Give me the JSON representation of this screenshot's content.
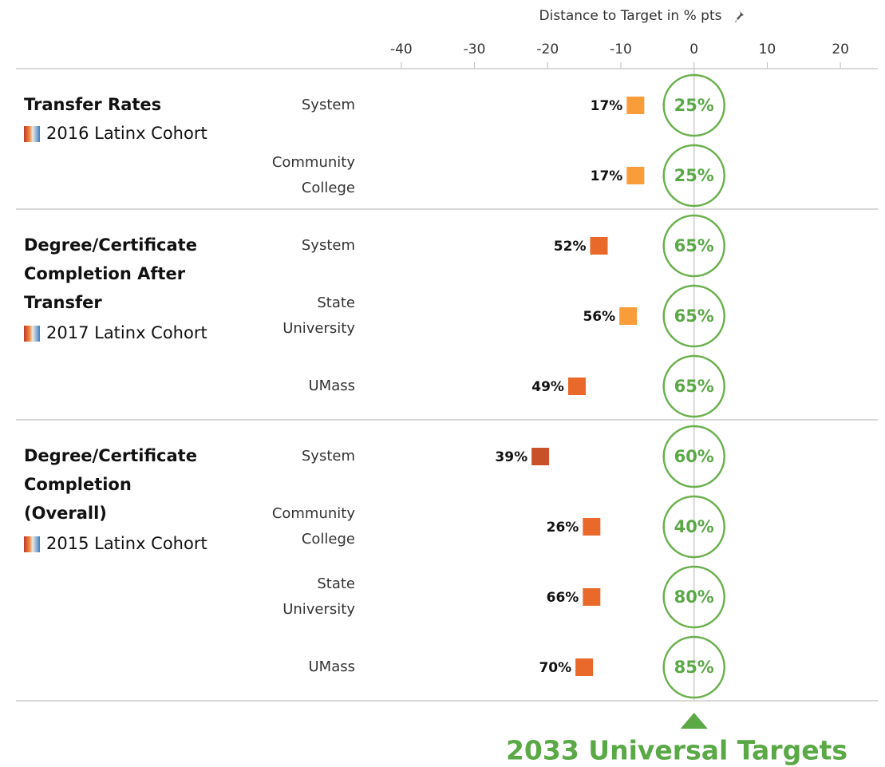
{
  "chart_data": {
    "type": "dot",
    "x_label": "Distance to Target in % pts",
    "xlim": [
      -45,
      25
    ],
    "xticks": [
      -40,
      -30,
      -20,
      -10,
      0,
      10,
      20
    ],
    "footer": "2033 Universal Targets",
    "groups": [
      {
        "title_lines": [
          "Transfer Rates"
        ],
        "cohort": "2016 Latinx Cohort",
        "rows": [
          {
            "label": [
              "System"
            ],
            "value": 17,
            "value_label": "17%",
            "target": 25,
            "target_label": "25%",
            "color": "#f99d3a"
          },
          {
            "label": [
              "Community",
              "College"
            ],
            "value": 17,
            "value_label": "17%",
            "target": 25,
            "target_label": "25%",
            "color": "#f99d3a"
          }
        ]
      },
      {
        "title_lines": [
          "Degree/Certificate",
          "Completion After",
          "Transfer"
        ],
        "cohort": "2017 Latinx Cohort",
        "rows": [
          {
            "label": [
              "System"
            ],
            "value": 52,
            "value_label": "52%",
            "target": 65,
            "target_label": "65%",
            "color": "#e8692a"
          },
          {
            "label": [
              "State",
              "University"
            ],
            "value": 56,
            "value_label": "56%",
            "target": 65,
            "target_label": "65%",
            "color": "#f99d3a"
          },
          {
            "label": [
              "UMass"
            ],
            "value": 49,
            "value_label": "49%",
            "target": 65,
            "target_label": "65%",
            "color": "#e8692a"
          }
        ]
      },
      {
        "title_lines": [
          "Degree/Certificate",
          "Completion",
          "(Overall)"
        ],
        "cohort": "2015 Latinx Cohort",
        "rows": [
          {
            "label": [
              "System"
            ],
            "value": 39,
            "value_label": "39%",
            "target": 60,
            "target_label": "60%",
            "color": "#c9512a"
          },
          {
            "label": [
              "Community",
              "College"
            ],
            "value": 26,
            "value_label": "26%",
            "target": 40,
            "target_label": "40%",
            "color": "#e8692a"
          },
          {
            "label": [
              "State",
              "University"
            ],
            "value": 66,
            "value_label": "66%",
            "target": 80,
            "target_label": "80%",
            "color": "#e8692a"
          },
          {
            "label": [
              "UMass"
            ],
            "value": 70,
            "value_label": "70%",
            "target": 85,
            "target_label": "85%",
            "color": "#e8692a"
          }
        ]
      }
    ]
  }
}
